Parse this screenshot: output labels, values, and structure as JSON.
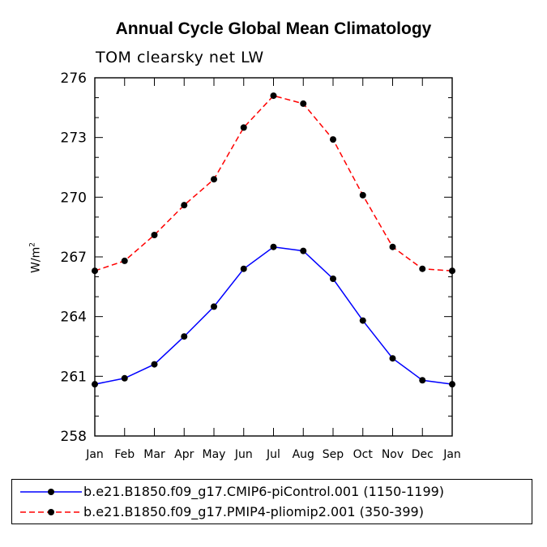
{
  "chart_data": {
    "type": "line",
    "title": "Annual Cycle Global Mean Climatology",
    "subtitle": "TOM clearsky net LW",
    "ylabel_base": "W/m",
    "ylabel_sup": "2",
    "xlabel": "",
    "categories": [
      "Jan",
      "Feb",
      "Mar",
      "Apr",
      "May",
      "Jun",
      "Jul",
      "Aug",
      "Sep",
      "Oct",
      "Nov",
      "Dec",
      "Jan"
    ],
    "ylim": [
      258,
      276
    ],
    "yticks": [
      276,
      273,
      270,
      267,
      264,
      261,
      258
    ],
    "series": [
      {
        "name": "b.e21.B1850.f09_g17.CMIP6-piControl.001 (1150-1199)",
        "color": "#0000ff",
        "dash": "solid",
        "values": [
          260.6,
          260.9,
          261.6,
          263.0,
          264.5,
          266.4,
          267.5,
          267.3,
          265.9,
          263.8,
          261.9,
          260.8,
          260.6
        ]
      },
      {
        "name": "b.e21.B1850.f09_g17.PMIP4-pliomip2.001 (350-399)",
        "color": "#ff0000",
        "dash": "dashed",
        "values": [
          266.3,
          266.8,
          268.1,
          269.6,
          270.9,
          273.5,
          275.1,
          274.7,
          272.9,
          270.1,
          267.5,
          266.4,
          266.3
        ]
      }
    ]
  }
}
